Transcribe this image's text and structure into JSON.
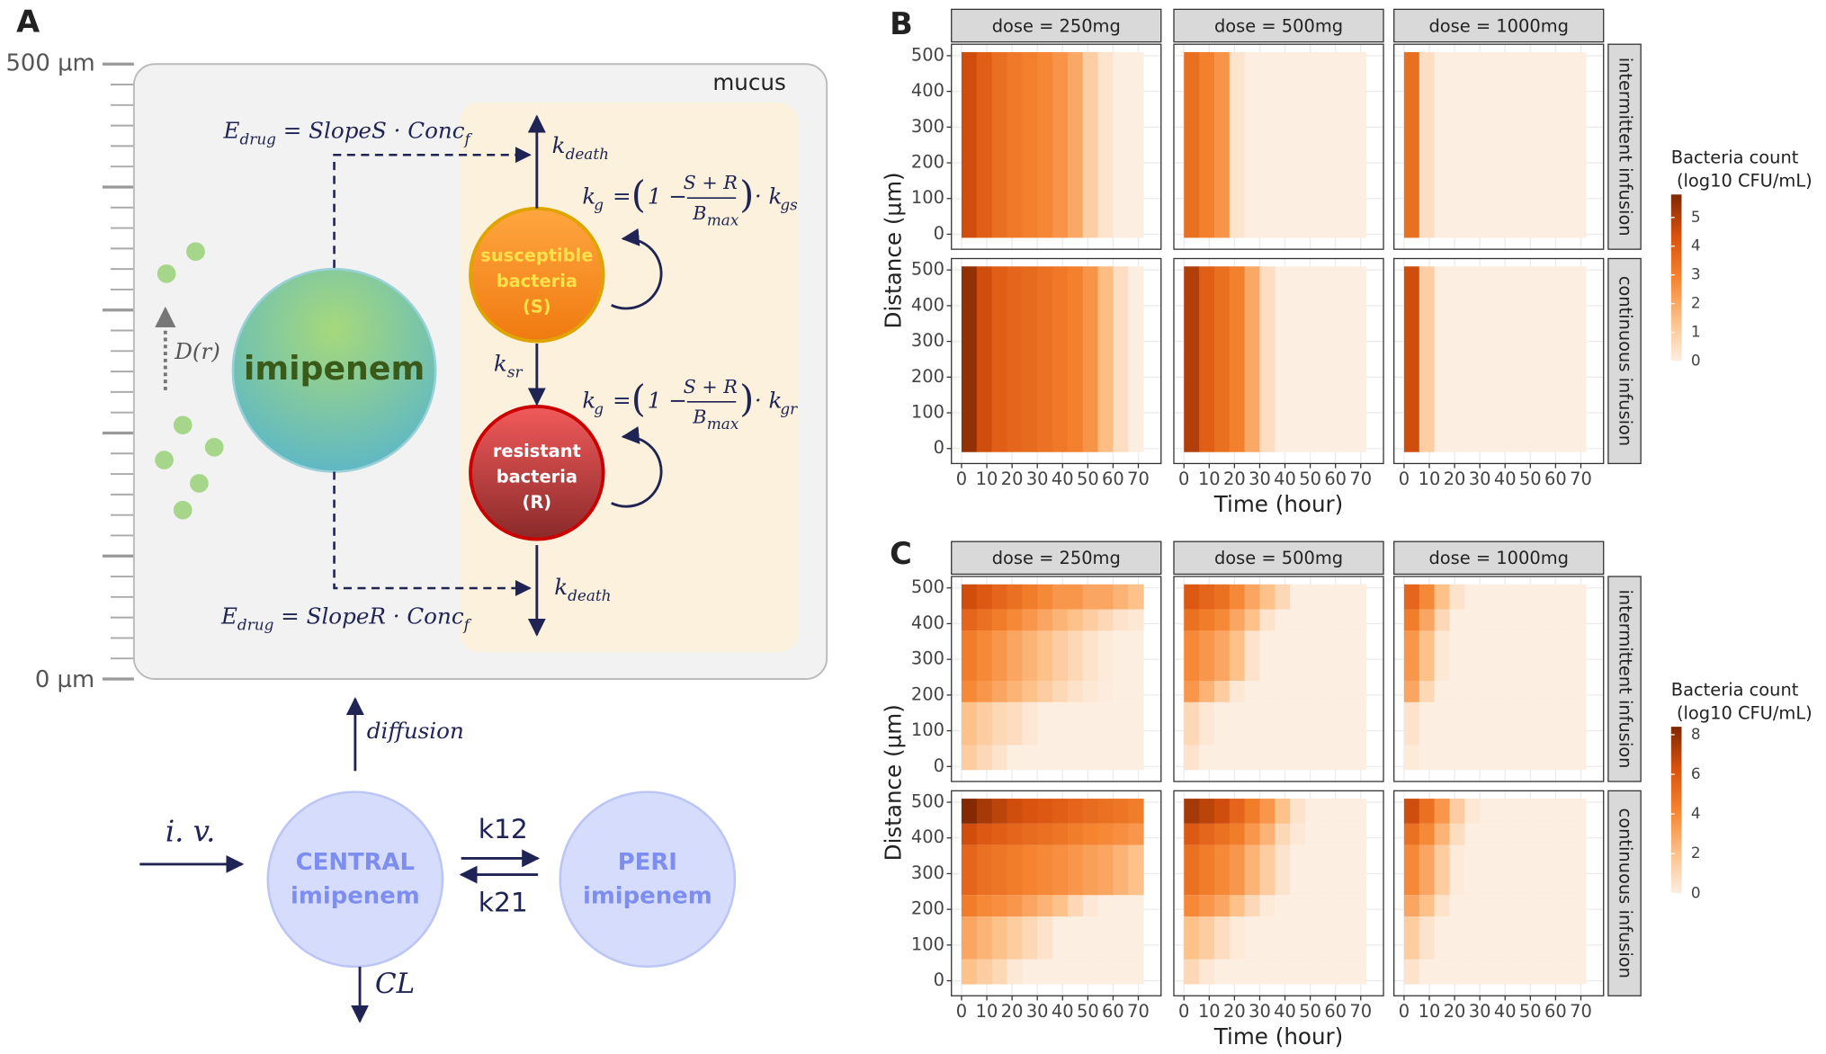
{
  "panel_labels": [
    "A",
    "B",
    "C"
  ],
  "diagram": {
    "axis_labels": [
      "500 µm",
      "0 µm"
    ],
    "mucus": "mucus",
    "imipenem": "imipenem",
    "susceptible": [
      "susceptible",
      "bacteria",
      "(S)"
    ],
    "resistant": [
      "resistant",
      "bacteria",
      "(R)"
    ],
    "e_drug_s": [
      "E",
      "drug",
      " = SlopeS · Conc",
      "f"
    ],
    "e_drug_r": [
      "E",
      "drug",
      " = SlopeR · Conc",
      "f"
    ],
    "k_death": [
      "k",
      "death"
    ],
    "k_sr": [
      "k",
      "sr"
    ],
    "kg_s": [
      "k",
      "g",
      "=",
      "(",
      "1 −",
      "S + R",
      "B",
      "max",
      ")",
      "· k",
      "gs"
    ],
    "kg_r": [
      "k",
      "g",
      "=",
      "(",
      "1 −",
      "S + R",
      "B",
      "max",
      ")",
      "· k",
      "gr"
    ],
    "d_r": "D(r)",
    "diffusion": "diffusion",
    "iv": "i. v.",
    "central": [
      "CENTRAL",
      "imipenem"
    ],
    "peri": [
      "PERI",
      "imipenem"
    ],
    "k12": "k12",
    "k21": "k21",
    "cl": "CL"
  },
  "chart_data": [
    {
      "type": "heatmap",
      "x_label": "Time (hour)",
      "y_label": "Distance (µm)",
      "facet_columns": [
        "dose = 250mg",
        "dose = 500mg",
        "dose = 1000mg"
      ],
      "facet_rows": [
        "intermittent infusion",
        "continuous infusion"
      ],
      "xlim": [
        -4,
        79
      ],
      "ylim": [
        -42,
        532
      ],
      "xticks": [
        0,
        10,
        20,
        30,
        40,
        50,
        60,
        70
      ],
      "yticks": [
        0,
        100,
        200,
        300,
        400,
        500
      ],
      "x_bins": [
        0,
        6,
        12,
        18,
        24,
        30,
        36,
        42,
        48,
        54,
        60,
        66,
        72
      ],
      "y_bins": [
        -10,
        510
      ],
      "colorbar_title": [
        "Bacteria count",
        " (log10 CFU/mL)"
      ],
      "colorbar_lim": [
        0,
        5.8
      ],
      "colorbar_ticks": [
        0,
        1,
        2,
        3,
        4,
        5
      ],
      "colors": [
        "#fdeee2",
        "#fdbf86",
        "#f5832f",
        "#d9520e",
        "#7f2704"
      ],
      "panels": [
        [
          {
            "z": [
              [
                4.5,
                4,
                3.5,
                3.2,
                3,
                2.8,
                2.5,
                2,
                1,
                0.3,
                0,
                0
              ]
            ]
          },
          {
            "z": [
              [
                3.5,
                3,
                2.5,
                0.3,
                0,
                0,
                0,
                0,
                0,
                0,
                0,
                0
              ]
            ]
          },
          {
            "z": [
              [
                3.5,
                0.5,
                0,
                0,
                0,
                0,
                0,
                0,
                0,
                0,
                0,
                0
              ]
            ]
          }
        ],
        [
          {
            "z": [
              [
                5.5,
                4.5,
                4,
                3.8,
                3.6,
                3.4,
                3.2,
                3,
                2.5,
                1.5,
                0.5,
                0
              ]
            ]
          },
          {
            "z": [
              [
                5,
                4,
                3.5,
                3,
                2,
                0.5,
                0,
                0,
                0,
                0,
                0,
                0
              ]
            ]
          },
          {
            "z": [
              [
                4.5,
                1,
                0,
                0,
                0,
                0,
                0,
                0,
                0,
                0,
                0,
                0
              ]
            ]
          }
        ]
      ]
    },
    {
      "type": "heatmap",
      "x_label": "Time (hour)",
      "y_label": "Distance (µm)",
      "facet_columns": [
        "dose = 250mg",
        "dose = 500mg",
        "dose = 1000mg"
      ],
      "facet_rows": [
        "intermittent infusion",
        "continuous infusion"
      ],
      "xlim": [
        -4,
        79
      ],
      "ylim": [
        -42,
        532
      ],
      "xticks": [
        0,
        10,
        20,
        30,
        40,
        50,
        60,
        70
      ],
      "yticks": [
        0,
        100,
        200,
        300,
        400,
        500
      ],
      "x_bins": [
        0,
        6,
        12,
        18,
        24,
        30,
        36,
        42,
        48,
        54,
        60,
        66,
        72
      ],
      "y_bins": [
        -10,
        60,
        180,
        240,
        380,
        440,
        510
      ],
      "colorbar_title": [
        "Bacteria count",
        " (log10 CFU/mL)"
      ],
      "colorbar_lim": [
        0,
        8.4
      ],
      "colorbar_ticks": [
        0,
        2,
        4,
        6,
        8
      ],
      "colors": [
        "#fdeee2",
        "#fdbf86",
        "#f5832f",
        "#d9520e",
        "#7f2704"
      ],
      "panels": [
        [
          {
            "z": [
              [
                1.5,
                1,
                0.5,
                0,
                0,
                0,
                0,
                0,
                0,
                0,
                0,
                0
              ],
              [
                2,
                1.5,
                1,
                0.8,
                0.3,
                0,
                0,
                0,
                0,
                0,
                0,
                0
              ],
              [
                4,
                3.5,
                3,
                2.5,
                2,
                1.5,
                1,
                0.6,
                0.3,
                0.1,
                0,
                0
              ],
              [
                4.5,
                4,
                3.5,
                3,
                2.5,
                2,
                1.5,
                1,
                0.5,
                0.2,
                0,
                0
              ],
              [
                5.5,
                5,
                4.5,
                4,
                3.5,
                3,
                2.5,
                2,
                1.5,
                1,
                0.5,
                0.3
              ],
              [
                6.5,
                6,
                5.5,
                5,
                4.5,
                4,
                3.5,
                3.5,
                3,
                3,
                2.5,
                2
              ]
            ]
          },
          {
            "z": [
              [
                0.5,
                0,
                0,
                0,
                0,
                0,
                0,
                0,
                0,
                0,
                0,
                0
              ],
              [
                1,
                0.3,
                0,
                0,
                0,
                0,
                0,
                0,
                0,
                0,
                0,
                0
              ],
              [
                3.5,
                2.5,
                1.5,
                0.3,
                0,
                0,
                0,
                0,
                0,
                0,
                0,
                0
              ],
              [
                4,
                3.5,
                3,
                2,
                0.5,
                0,
                0,
                0,
                0,
                0,
                0,
                0
              ],
              [
                5,
                4.5,
                4,
                3,
                2,
                0.5,
                0,
                0,
                0,
                0,
                0,
                0
              ],
              [
                6,
                5.5,
                5,
                4,
                3,
                2,
                1,
                0,
                0,
                0,
                0,
                0
              ]
            ]
          },
          {
            "z": [
              [
                0.2,
                0,
                0,
                0,
                0,
                0,
                0,
                0,
                0,
                0,
                0,
                0
              ],
              [
                0.5,
                0,
                0,
                0,
                0,
                0,
                0,
                0,
                0,
                0,
                0,
                0
              ],
              [
                3,
                1,
                0,
                0,
                0,
                0,
                0,
                0,
                0,
                0,
                0,
                0
              ],
              [
                3.5,
                2,
                0.3,
                0,
                0,
                0,
                0,
                0,
                0,
                0,
                0,
                0
              ],
              [
                4.5,
                3,
                1,
                0,
                0,
                0,
                0,
                0,
                0,
                0,
                0,
                0
              ],
              [
                5.5,
                4,
                2,
                0.5,
                0,
                0,
                0,
                0,
                0,
                0,
                0,
                0
              ]
            ]
          }
        ],
        [
          {
            "z": [
              [
                2,
                1.5,
                1,
                0.3,
                0,
                0,
                0,
                0,
                0,
                0,
                0,
                0
              ],
              [
                3,
                2.5,
                2,
                1.5,
                1,
                0.5,
                0,
                0,
                0,
                0,
                0,
                0
              ],
              [
                4.5,
                4,
                3.8,
                3.5,
                3,
                2.5,
                2,
                1,
                0.3,
                0,
                0,
                0
              ],
              [
                5.5,
                5,
                4.8,
                4.5,
                4.2,
                4,
                3.8,
                3.5,
                3.2,
                3,
                2.5,
                2
              ],
              [
                6.5,
                6,
                5.8,
                5.5,
                5.2,
                5,
                4.8,
                4.5,
                4.2,
                4,
                3.8,
                3.5
              ],
              [
                8.3,
                7.5,
                7,
                6.5,
                6.2,
                6,
                5.8,
                5.5,
                5.2,
                5,
                4.8,
                4.5
              ]
            ]
          },
          {
            "z": [
              [
                1,
                0.3,
                0,
                0,
                0,
                0,
                0,
                0,
                0,
                0,
                0,
                0
              ],
              [
                2,
                1.5,
                0.8,
                0.2,
                0,
                0,
                0,
                0,
                0,
                0,
                0,
                0
              ],
              [
                4,
                3.5,
                3,
                2,
                1,
                0.2,
                0,
                0,
                0,
                0,
                0,
                0
              ],
              [
                5,
                4.5,
                4,
                3.5,
                2.5,
                1.5,
                0.5,
                0,
                0,
                0,
                0,
                0
              ],
              [
                6,
                5.5,
                5,
                4.5,
                3.5,
                2.5,
                1,
                0.3,
                0,
                0,
                0,
                0
              ],
              [
                7.5,
                7,
                6.5,
                5.5,
                4.5,
                3.5,
                2,
                0.5,
                0,
                0,
                0,
                0
              ]
            ]
          },
          {
            "z": [
              [
                0.5,
                0,
                0,
                0,
                0,
                0,
                0,
                0,
                0,
                0,
                0,
                0
              ],
              [
                1.5,
                0.5,
                0,
                0,
                0,
                0,
                0,
                0,
                0,
                0,
                0,
                0
              ],
              [
                3,
                2,
                0.5,
                0,
                0,
                0,
                0,
                0,
                0,
                0,
                0,
                0
              ],
              [
                4,
                3,
                1.5,
                0.2,
                0,
                0,
                0,
                0,
                0,
                0,
                0,
                0
              ],
              [
                5,
                4,
                2.5,
                0.8,
                0,
                0,
                0,
                0,
                0,
                0,
                0,
                0
              ],
              [
                6.5,
                5,
                3.5,
                1.5,
                0.3,
                0,
                0,
                0,
                0,
                0,
                0,
                0
              ]
            ]
          }
        ]
      ]
    }
  ]
}
